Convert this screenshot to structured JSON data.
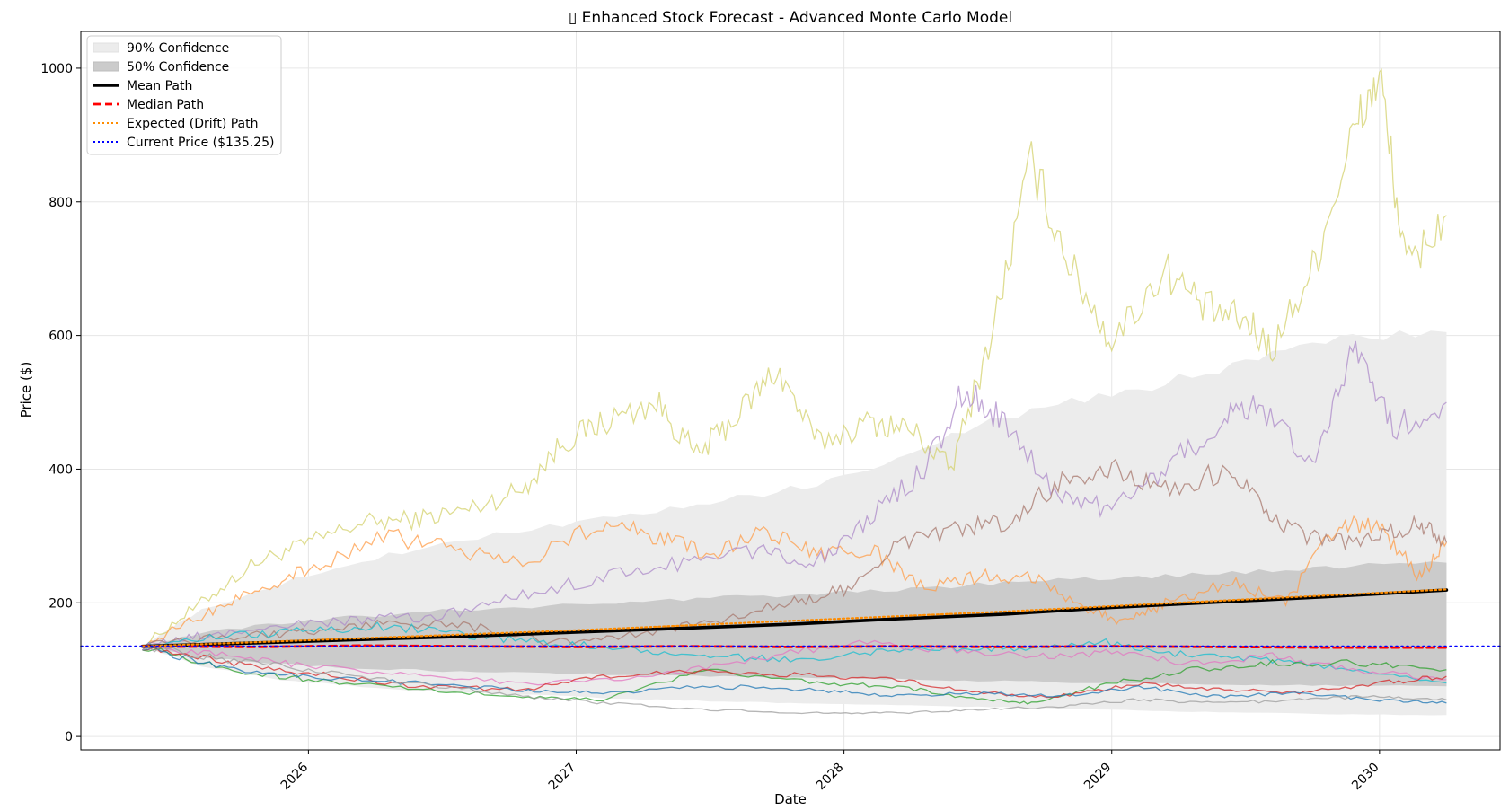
{
  "chart_data": {
    "type": "line",
    "title": "Enhanced Stock Forecast - Advanced Monte Carlo Model",
    "title_icon": "▯",
    "xlabel": "Date",
    "ylabel": "Price ($)",
    "xlim": [
      2025.15,
      2030.45
    ],
    "ylim": [
      -20,
      1055
    ],
    "x_ticks": [
      2026,
      2027,
      2028,
      2029,
      2030
    ],
    "x_tick_labels": [
      "2026",
      "2027",
      "2028",
      "2029",
      "2030"
    ],
    "y_ticks": [
      0,
      200,
      400,
      600,
      800,
      1000
    ],
    "y_tick_labels": [
      "0",
      "200",
      "400",
      "600",
      "800",
      "1000"
    ],
    "grid": true,
    "legend_position": "upper-left",
    "current_price": 135.25,
    "bands": [
      {
        "name": "90% Confidence",
        "color": "#ececec",
        "x": [
          2025.38,
          2025.6,
          2025.9,
          2026.2,
          2026.5,
          2026.9,
          2027.2,
          2027.5,
          2027.8,
          2028.1,
          2028.4,
          2028.7,
          2029.0,
          2029.3,
          2029.6,
          2029.9,
          2030.25
        ],
        "upper": [
          135,
          190,
          230,
          262,
          290,
          315,
          330,
          350,
          370,
          395,
          450,
          490,
          510,
          540,
          570,
          595,
          605
        ],
        "lower": [
          135,
          105,
          85,
          74,
          67,
          61,
          56,
          53,
          50,
          48,
          45,
          43,
          40,
          37,
          35,
          33,
          32
        ]
      },
      {
        "name": "50% Confidence",
        "color": "#cbcbcb",
        "x": [
          2025.38,
          2025.6,
          2025.9,
          2026.2,
          2026.5,
          2026.9,
          2027.2,
          2027.5,
          2027.8,
          2028.1,
          2028.4,
          2028.7,
          2029.0,
          2029.3,
          2029.6,
          2029.9,
          2030.25
        ],
        "upper": [
          135,
          155,
          170,
          180,
          188,
          196,
          202,
          207,
          212,
          218,
          225,
          232,
          237,
          242,
          248,
          255,
          260
        ],
        "lower": [
          135,
          118,
          108,
          102,
          98,
          95,
          92,
          90,
          88,
          86,
          84,
          82,
          80,
          78,
          77,
          76,
          75
        ]
      }
    ],
    "series": [
      {
        "name": "Mean Path",
        "color": "#000000",
        "style": "solid",
        "x": [
          2025.38,
          2025.8,
          2026.2,
          2026.6,
          2027.0,
          2027.4,
          2027.8,
          2028.2,
          2028.6,
          2029.0,
          2029.4,
          2029.8,
          2030.25
        ],
        "values": [
          135,
          140,
          145,
          150,
          156,
          162,
          168,
          176,
          183,
          193,
          201,
          209,
          219
        ]
      },
      {
        "name": "Median Path",
        "color": "#ff0000",
        "style": "dashed",
        "x": [
          2025.38,
          2025.8,
          2026.2,
          2026.6,
          2027.0,
          2027.4,
          2027.8,
          2028.2,
          2028.6,
          2029.0,
          2029.4,
          2029.8,
          2030.25
        ],
        "values": [
          135,
          134,
          136,
          135,
          134,
          135,
          134,
          135,
          134,
          135,
          134,
          133,
          133
        ]
      },
      {
        "name": "Expected (Drift) Path",
        "color": "#ff8c00",
        "style": "dotted",
        "x": [
          2025.38,
          2025.8,
          2026.2,
          2026.6,
          2027.0,
          2027.4,
          2027.8,
          2028.2,
          2028.6,
          2029.0,
          2029.4,
          2029.8,
          2030.25
        ],
        "values": [
          135,
          141,
          147,
          153,
          159,
          166,
          173,
          180,
          187,
          195,
          203,
          211,
          220
        ]
      },
      {
        "name": "Current Price ($135.25)",
        "color": "#0000ff",
        "style": "dotted-hline",
        "x": [
          2025.15,
          2030.45
        ],
        "values": [
          135.25,
          135.25
        ]
      }
    ],
    "sample_paths": [
      {
        "color": "#d4d26e",
        "x": [
          2025.38,
          2025.6,
          2025.8,
          2026.0,
          2026.2,
          2026.4,
          2026.6,
          2026.8,
          2026.95,
          2027.1,
          2027.3,
          2027.45,
          2027.6,
          2027.75,
          2027.9,
          2028.1,
          2028.25,
          2028.4,
          2028.55,
          2028.7,
          2028.85,
          2029.0,
          2029.2,
          2029.35,
          2029.5,
          2029.6,
          2029.75,
          2029.9,
          2030.0,
          2030.1,
          2030.25
        ],
        "values": [
          135,
          200,
          260,
          290,
          320,
          325,
          340,
          370,
          440,
          470,
          500,
          420,
          480,
          550,
          440,
          470,
          460,
          400,
          600,
          860,
          700,
          590,
          700,
          640,
          620,
          580,
          700,
          900,
          990,
          700,
          780
        ]
      },
      {
        "color": "#ff9e4a",
        "x": [
          2025.38,
          2025.6,
          2025.8,
          2026.0,
          2026.3,
          2026.55,
          2026.8,
          2027.1,
          2027.3,
          2027.5,
          2027.7,
          2027.9,
          2028.1,
          2028.3,
          2028.5,
          2028.7,
          2028.9,
          2029.05,
          2029.2,
          2029.45,
          2029.65,
          2029.85,
          2030.0,
          2030.15,
          2030.25
        ],
        "values": [
          135,
          180,
          220,
          250,
          300,
          280,
          260,
          320,
          300,
          270,
          310,
          270,
          280,
          220,
          240,
          240,
          195,
          170,
          200,
          230,
          200,
          320,
          310,
          240,
          290
        ]
      },
      {
        "color": "#ad8bc9",
        "x": [
          2025.38,
          2025.6,
          2025.9,
          2026.2,
          2026.5,
          2026.8,
          2027.1,
          2027.4,
          2027.7,
          2027.9,
          2028.1,
          2028.3,
          2028.45,
          2028.6,
          2028.8,
          2029.0,
          2029.2,
          2029.4,
          2029.55,
          2029.75,
          2029.9,
          2030.05,
          2030.25
        ],
        "values": [
          135,
          150,
          165,
          175,
          180,
          210,
          240,
          260,
          280,
          260,
          330,
          400,
          520,
          470,
          360,
          340,
          400,
          470,
          500,
          400,
          590,
          460,
          500
        ]
      },
      {
        "color": "#a8786e",
        "x": [
          2025.38,
          2025.7,
          2026.0,
          2026.3,
          2026.6,
          2026.9,
          2027.2,
          2027.5,
          2027.8,
          2028.0,
          2028.2,
          2028.4,
          2028.6,
          2028.8,
          2029.0,
          2029.2,
          2029.45,
          2029.6,
          2029.8,
          2030.0,
          2030.15,
          2030.25
        ],
        "values": [
          135,
          150,
          155,
          170,
          165,
          140,
          150,
          170,
          200,
          220,
          290,
          310,
          320,
          380,
          400,
          370,
          400,
          320,
          290,
          300,
          320,
          290
        ]
      },
      {
        "color": "#17becf",
        "x": [
          2025.38,
          2025.7,
          2026.0,
          2026.3,
          2026.6,
          2026.9,
          2027.2,
          2027.5,
          2027.8,
          2028.1,
          2028.4,
          2028.7,
          2029.0,
          2029.3,
          2029.6,
          2029.9,
          2030.25
        ],
        "values": [
          135,
          150,
          160,
          165,
          150,
          140,
          130,
          120,
          115,
          125,
          130,
          135,
          140,
          120,
          115,
          100,
          80
        ]
      },
      {
        "color": "#e377c2",
        "x": [
          2025.38,
          2025.7,
          2026.0,
          2026.4,
          2026.8,
          2027.2,
          2027.6,
          2028.0,
          2028.4,
          2028.7,
          2029.0,
          2029.3,
          2029.6,
          2029.9,
          2030.25
        ],
        "values": [
          135,
          120,
          105,
          90,
          80,
          85,
          110,
          140,
          130,
          120,
          125,
          110,
          120,
          100,
          85
        ]
      },
      {
        "color": "#2ca02c",
        "x": [
          2025.38,
          2025.7,
          2026.0,
          2026.4,
          2026.8,
          2027.1,
          2027.5,
          2027.9,
          2028.2,
          2028.5,
          2028.7,
          2029.0,
          2029.3,
          2029.6,
          2029.9,
          2030.25
        ],
        "values": [
          135,
          100,
          85,
          70,
          60,
          55,
          100,
          80,
          75,
          55,
          50,
          80,
          100,
          110,
          110,
          100
        ]
      },
      {
        "color": "#d62728",
        "x": [
          2025.38,
          2025.7,
          2026.0,
          2026.4,
          2026.8,
          2027.1,
          2027.5,
          2027.9,
          2028.2,
          2028.5,
          2028.8,
          2029.1,
          2029.4,
          2029.7,
          2030.0,
          2030.25
        ],
        "values": [
          135,
          110,
          95,
          75,
          70,
          90,
          100,
          90,
          85,
          65,
          60,
          80,
          70,
          65,
          80,
          90
        ]
      },
      {
        "color": "#1f77b4",
        "x": [
          2025.38,
          2025.7,
          2026.0,
          2026.4,
          2026.8,
          2027.1,
          2027.5,
          2027.9,
          2028.2,
          2028.5,
          2028.8,
          2029.1,
          2029.4,
          2029.7,
          2030.0,
          2030.25
        ],
        "values": [
          135,
          100,
          90,
          80,
          70,
          65,
          75,
          70,
          60,
          65,
          60,
          75,
          60,
          65,
          55,
          50
        ]
      },
      {
        "color": "#9e9e9e",
        "x": [
          2025.38,
          2025.7,
          2026.0,
          2026.4,
          2026.8,
          2027.1,
          2027.5,
          2027.9,
          2028.2,
          2028.5,
          2028.8,
          2029.1,
          2029.4,
          2029.7,
          2030.0,
          2030.25
        ],
        "values": [
          135,
          115,
          100,
          80,
          60,
          50,
          40,
          35,
          35,
          40,
          45,
          55,
          50,
          55,
          60,
          55
        ]
      }
    ],
    "legend": [
      {
        "label": "90% Confidence",
        "kind": "patch",
        "color": "#ececec",
        "edge": "#e0e0e0"
      },
      {
        "label": "50% Confidence",
        "kind": "patch",
        "color": "#cbcbcb",
        "edge": "#bdbdbd"
      },
      {
        "label": "Mean Path",
        "kind": "line",
        "color": "#000000",
        "style": "solid"
      },
      {
        "label": "Median Path",
        "kind": "line",
        "color": "#ff0000",
        "style": "dashed"
      },
      {
        "label": "Expected (Drift) Path",
        "kind": "line",
        "color": "#ff8c00",
        "style": "dotted"
      },
      {
        "label": "Current Price ($135.25)",
        "kind": "line",
        "color": "#0000ff",
        "style": "dotted"
      }
    ]
  }
}
